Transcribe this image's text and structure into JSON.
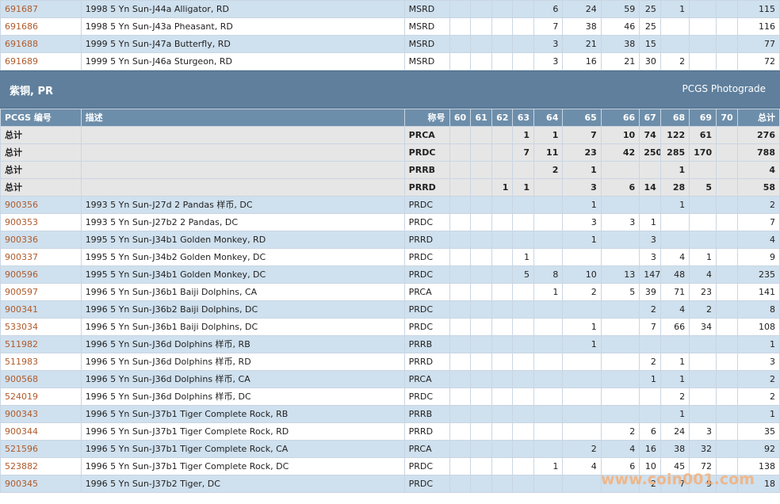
{
  "top_rows": [
    {
      "id": "691687",
      "desc": "1998 5 Yn Sun-J44a Alligator, RD",
      "code": "MSRD",
      "g": [
        "",
        "",
        "",
        "",
        "6",
        "24",
        "59",
        "25",
        "1",
        "",
        ""
      ],
      "total": "115"
    },
    {
      "id": "691686",
      "desc": "1998 5 Yn Sun-J43a Pheasant, RD",
      "code": "MSRD",
      "g": [
        "",
        "",
        "",
        "",
        "7",
        "38",
        "46",
        "25",
        "",
        "",
        ""
      ],
      "total": "116"
    },
    {
      "id": "691688",
      "desc": "1999 5 Yn Sun-J47a Butterfly, RD",
      "code": "MSRD",
      "g": [
        "",
        "",
        "",
        "",
        "3",
        "21",
        "38",
        "15",
        "",
        "",
        ""
      ],
      "total": "77"
    },
    {
      "id": "691689",
      "desc": "1999 5 Yn Sun-J46a Sturgeon, RD",
      "code": "MSRD",
      "g": [
        "",
        "",
        "",
        "",
        "3",
        "16",
        "21",
        "30",
        "2",
        "",
        ""
      ],
      "total": "72"
    }
  ],
  "section": {
    "title": "紫铜, PR",
    "link": "PCGS Photograde"
  },
  "columns": {
    "id": "PCGS 编号",
    "desc": "描述",
    "code": "称号",
    "grades": [
      "60",
      "61",
      "62",
      "63",
      "64",
      "65",
      "66",
      "67",
      "68",
      "69",
      "70"
    ],
    "total": "总计"
  },
  "totals": [
    {
      "label": "总计",
      "code": "PRCA",
      "g": [
        "",
        "",
        "",
        "1",
        "1",
        "7",
        "10",
        "74",
        "122",
        "61",
        ""
      ],
      "total": "276"
    },
    {
      "label": "总计",
      "code": "PRDC",
      "g": [
        "",
        "",
        "",
        "7",
        "11",
        "23",
        "42",
        "250",
        "285",
        "170",
        ""
      ],
      "total": "788"
    },
    {
      "label": "总计",
      "code": "PRRB",
      "g": [
        "",
        "",
        "",
        "",
        "2",
        "1",
        "",
        "",
        "1",
        "",
        ""
      ],
      "total": "4"
    },
    {
      "label": "总计",
      "code": "PRRD",
      "g": [
        "",
        "",
        "1",
        "1",
        "",
        "3",
        "6",
        "14",
        "28",
        "5",
        ""
      ],
      "total": "58"
    }
  ],
  "rows": [
    {
      "id": "900356",
      "desc": "1993 5 Yn Sun-J27d 2 Pandas 样币, DC",
      "code": "PRDC",
      "g": [
        "",
        "",
        "",
        "",
        "",
        "1",
        "",
        "",
        "1",
        "",
        ""
      ],
      "total": "2"
    },
    {
      "id": "900353",
      "desc": "1993 5 Yn Sun-J27b2 2 Pandas, DC",
      "code": "PRDC",
      "g": [
        "",
        "",
        "",
        "",
        "",
        "3",
        "3",
        "1",
        "",
        "",
        ""
      ],
      "total": "7"
    },
    {
      "id": "900336",
      "desc": "1995 5 Yn Sun-J34b1 Golden Monkey, RD",
      "code": "PRRD",
      "g": [
        "",
        "",
        "",
        "",
        "",
        "1",
        "",
        "3",
        "",
        "",
        ""
      ],
      "total": "4"
    },
    {
      "id": "900337",
      "desc": "1995 5 Yn Sun-J34b2 Golden Monkey, DC",
      "code": "PRDC",
      "g": [
        "",
        "",
        "",
        "1",
        "",
        "",
        "",
        "3",
        "4",
        "1",
        ""
      ],
      "total": "9"
    },
    {
      "id": "900596",
      "desc": "1995 5 Yn Sun-J34b1 Golden Monkey, DC",
      "code": "PRDC",
      "g": [
        "",
        "",
        "",
        "5",
        "8",
        "10",
        "13",
        "147",
        "48",
        "4",
        ""
      ],
      "total": "235"
    },
    {
      "id": "900597",
      "desc": "1996 5 Yn Sun-J36b1 Baiji Dolphins, CA",
      "code": "PRCA",
      "g": [
        "",
        "",
        "",
        "",
        "1",
        "2",
        "5",
        "39",
        "71",
        "23",
        ""
      ],
      "total": "141"
    },
    {
      "id": "900341",
      "desc": "1996 5 Yn Sun-J36b2 Baiji Dolphins, DC",
      "code": "PRDC",
      "g": [
        "",
        "",
        "",
        "",
        "",
        "",
        "",
        "2",
        "4",
        "2",
        ""
      ],
      "total": "8"
    },
    {
      "id": "533034",
      "desc": "1996 5 Yn Sun-J36b1 Baiji Dolphins, DC",
      "code": "PRDC",
      "g": [
        "",
        "",
        "",
        "",
        "",
        "1",
        "",
        "7",
        "66",
        "34",
        ""
      ],
      "total": "108"
    },
    {
      "id": "511982",
      "desc": "1996 5 Yn Sun-J36d Dolphins 样币, RB",
      "code": "PRRB",
      "g": [
        "",
        "",
        "",
        "",
        "",
        "1",
        "",
        "",
        "",
        "",
        ""
      ],
      "total": "1"
    },
    {
      "id": "511983",
      "desc": "1996 5 Yn Sun-J36d Dolphins 样币, RD",
      "code": "PRRD",
      "g": [
        "",
        "",
        "",
        "",
        "",
        "",
        "",
        "2",
        "1",
        "",
        ""
      ],
      "total": "3"
    },
    {
      "id": "900568",
      "desc": "1996 5 Yn Sun-J36d Dolphins 样币, CA",
      "code": "PRCA",
      "g": [
        "",
        "",
        "",
        "",
        "",
        "",
        "",
        "1",
        "1",
        "",
        ""
      ],
      "total": "2"
    },
    {
      "id": "524019",
      "desc": "1996 5 Yn Sun-J36d Dolphins 样币, DC",
      "code": "PRDC",
      "g": [
        "",
        "",
        "",
        "",
        "",
        "",
        "",
        "",
        "2",
        "",
        ""
      ],
      "total": "2"
    },
    {
      "id": "900343",
      "desc": "1996 5 Yn Sun-J37b1 Tiger Complete Rock, RB",
      "code": "PRRB",
      "g": [
        "",
        "",
        "",
        "",
        "",
        "",
        "",
        "",
        "1",
        "",
        ""
      ],
      "total": "1"
    },
    {
      "id": "900344",
      "desc": "1996 5 Yn Sun-J37b1 Tiger Complete Rock, RD",
      "code": "PRRD",
      "g": [
        "",
        "",
        "",
        "",
        "",
        "",
        "2",
        "6",
        "24",
        "3",
        ""
      ],
      "total": "35"
    },
    {
      "id": "521596",
      "desc": "1996 5 Yn Sun-J37b1 Tiger Complete Rock, CA",
      "code": "PRCA",
      "g": [
        "",
        "",
        "",
        "",
        "",
        "2",
        "4",
        "16",
        "38",
        "32",
        ""
      ],
      "total": "92"
    },
    {
      "id": "523882",
      "desc": "1996 5 Yn Sun-J37b1 Tiger Complete Rock, DC",
      "code": "PRDC",
      "g": [
        "",
        "",
        "",
        "",
        "1",
        "4",
        "6",
        "10",
        "45",
        "72",
        ""
      ],
      "total": "138"
    },
    {
      "id": "900345",
      "desc": "1996 5 Yn Sun-J37b2 Tiger, DC",
      "code": "PRDC",
      "g": [
        "",
        "",
        "",
        "",
        "",
        "",
        "",
        "2",
        "7",
        "9",
        ""
      ],
      "total": "18"
    }
  ],
  "watermark": "www.coin001.com",
  "colors": {
    "row_alt": "#cfe0ee",
    "header": "#6d8eaa",
    "section": "#5f7f9c",
    "link": "#b05a2a",
    "total_bg": "#e6e6e6"
  }
}
